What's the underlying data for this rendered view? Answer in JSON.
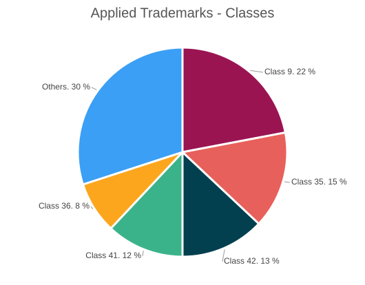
{
  "chart_data": {
    "type": "pie",
    "title": "Applied Trademarks - Classes",
    "values": [
      22,
      15,
      13,
      12,
      8,
      30
    ],
    "value_labels": [
      "Class 9. 22 %",
      "Class 35. 15 %",
      "Class 42. 13 %",
      "Class 41. 12 %",
      "Class 36. 8 %",
      "Others. 30 %"
    ],
    "colors": [
      "#9b1452",
      "#e8605b",
      "#02404f",
      "#3bb38a",
      "#fca61e",
      "#3b9ff5"
    ]
  }
}
